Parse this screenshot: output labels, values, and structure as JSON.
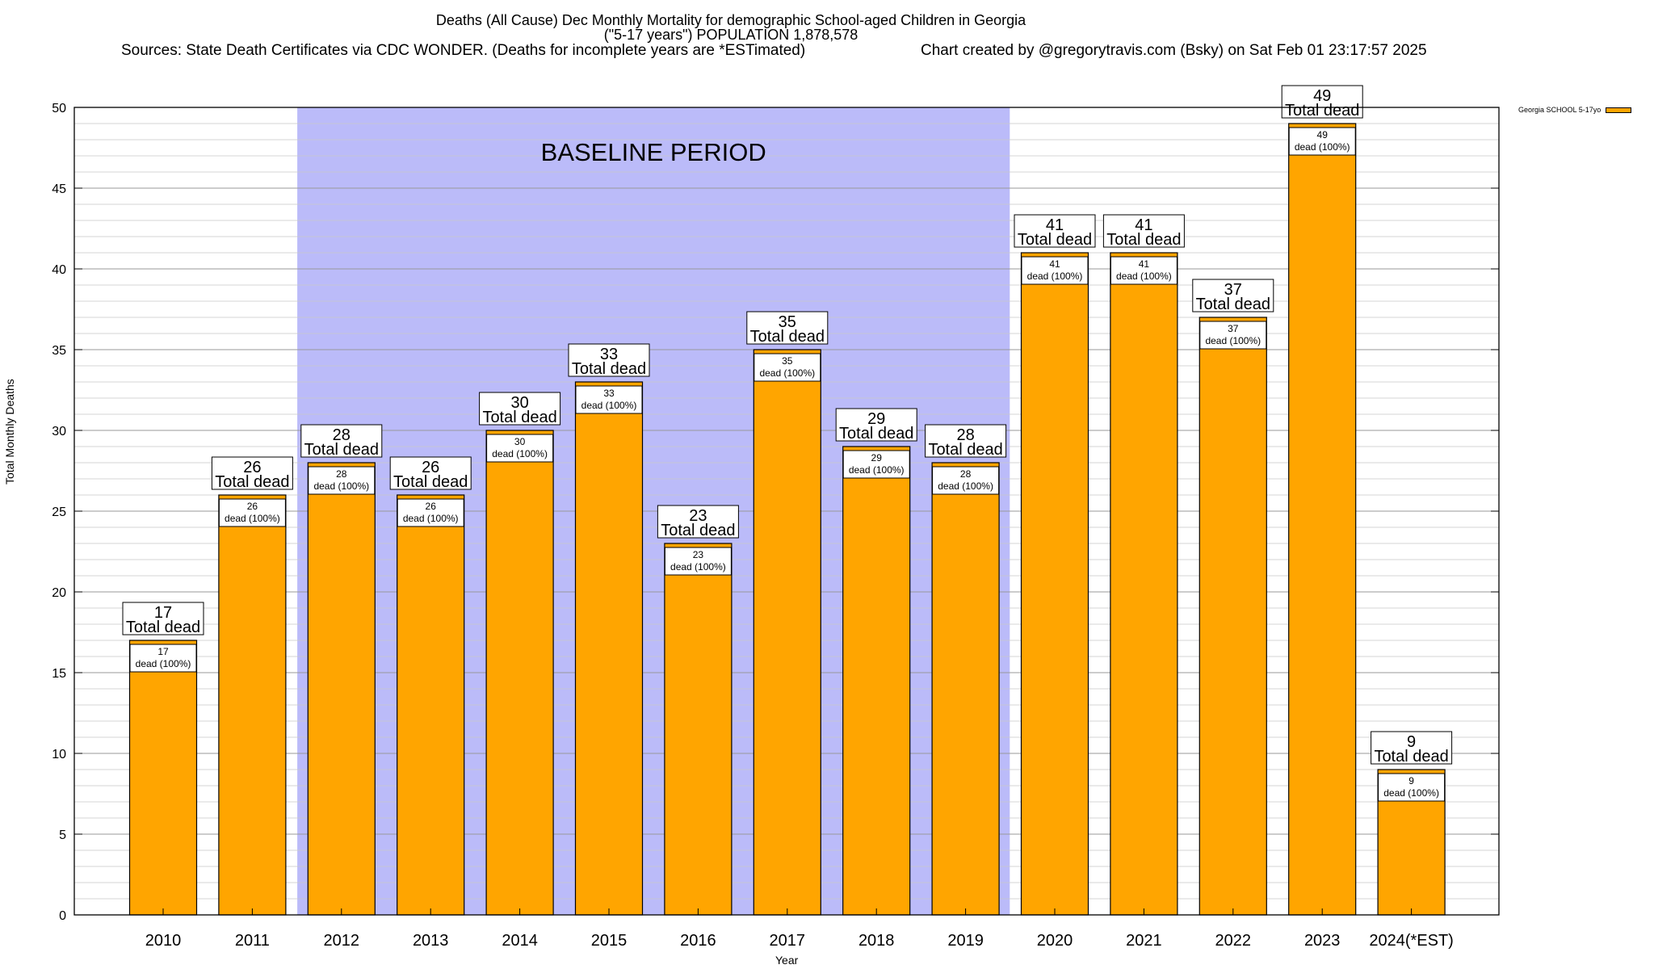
{
  "chart_data": {
    "type": "bar",
    "title": "Deaths (All Cause) Dec Monthly Mortality for demographic School-aged Children in Georgia",
    "title_line2": "(\"5-17 years\") POPULATION 1,878,578",
    "subtitle_left": "Sources: State Death Certificates via CDC WONDER. (Deaths for incomplete years are *ESTimated)",
    "subtitle_right": "Chart created by @gregorytravis.com (Bsky) on Sat Feb 01 23:17:57 2025",
    "xlabel": "Year",
    "ylabel": "Total Monthly Deaths",
    "ylim": [
      0,
      50
    ],
    "ytick_step": 5,
    "yticks": [
      "0",
      "5",
      "10",
      "15",
      "20",
      "25",
      "30",
      "35",
      "40",
      "45",
      "50"
    ],
    "grid": true,
    "legend": {
      "label": "Georgia SCHOOL 5-17yo",
      "placement": "top-right outside",
      "color": "#FFA500"
    },
    "baseline": {
      "label": "BASELINE PERIOD",
      "start": "2012",
      "end": "2019",
      "color": "#BBBBF9"
    },
    "bar_color": "#FFA500",
    "bar_label_top": "Total dead",
    "bar_label_inner": "dead (100%)",
    "categories": [
      "2010",
      "2011",
      "2012",
      "2013",
      "2014",
      "2015",
      "2016",
      "2017",
      "2018",
      "2019",
      "2020",
      "2021",
      "2022",
      "2023",
      "2024(*EST)"
    ],
    "series": [
      {
        "name": "Georgia SCHOOL 5-17yo",
        "values": [
          17,
          26,
          28,
          26,
          30,
          33,
          23,
          35,
          29,
          28,
          41,
          41,
          37,
          49,
          9
        ]
      }
    ]
  }
}
